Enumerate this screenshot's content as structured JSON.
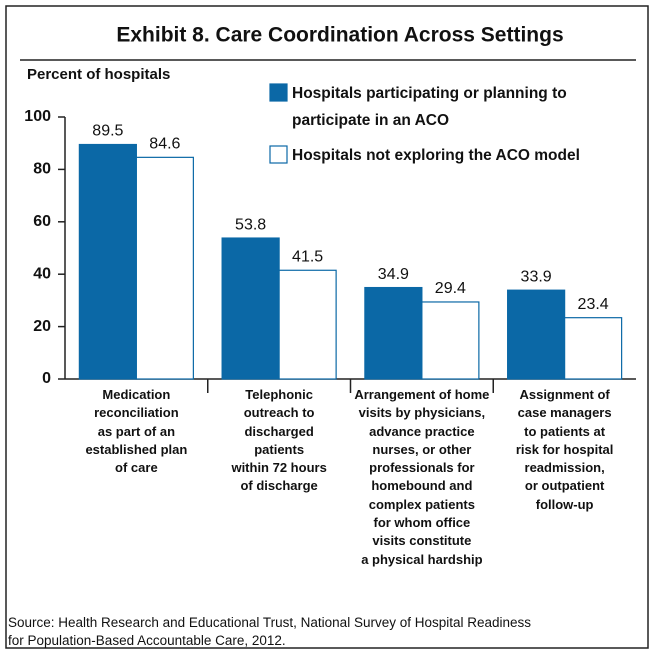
{
  "chart_data": {
    "type": "bar",
    "title": "Exhibit 8. Care Coordination Across Settings",
    "y_label": "Percent of hospitals",
    "categories": [
      "Medication\nreconciliation\nas part of an\nestablished plan\nof care",
      "Telephonic\noutreach to\ndischarged\npatients\nwithin 72 hours\nof discharge",
      "Arrangement of home\nvisits by physicians,\nadvance practice\nnurses, or other\nprofessionals for\nhomebound and\ncomplex patients\nfor whom office\nvisits constitute\na physical hardship",
      "Assignment of\ncase managers\nto patients at\nrisk for hospital\nreadmission,\nor outpatient\nfollow-up"
    ],
    "series": [
      {
        "name": "Hospitals participating or planning to\nparticipate in an ACO",
        "color": "#0b68a6",
        "values": [
          89.5,
          53.8,
          34.9,
          33.9
        ]
      },
      {
        "name": "Hospitals not exploring the ACO model",
        "color": "#ffffff",
        "values": [
          84.6,
          41.5,
          29.4,
          23.4
        ]
      }
    ],
    "ylim": [
      0,
      100
    ],
    "yticks": [
      0,
      20,
      40,
      60,
      80,
      100
    ],
    "source": "Source: Health Research and Educational Trust, National Survey of Hospital Readiness\nfor Population-Based Accountable Care, 2012."
  }
}
